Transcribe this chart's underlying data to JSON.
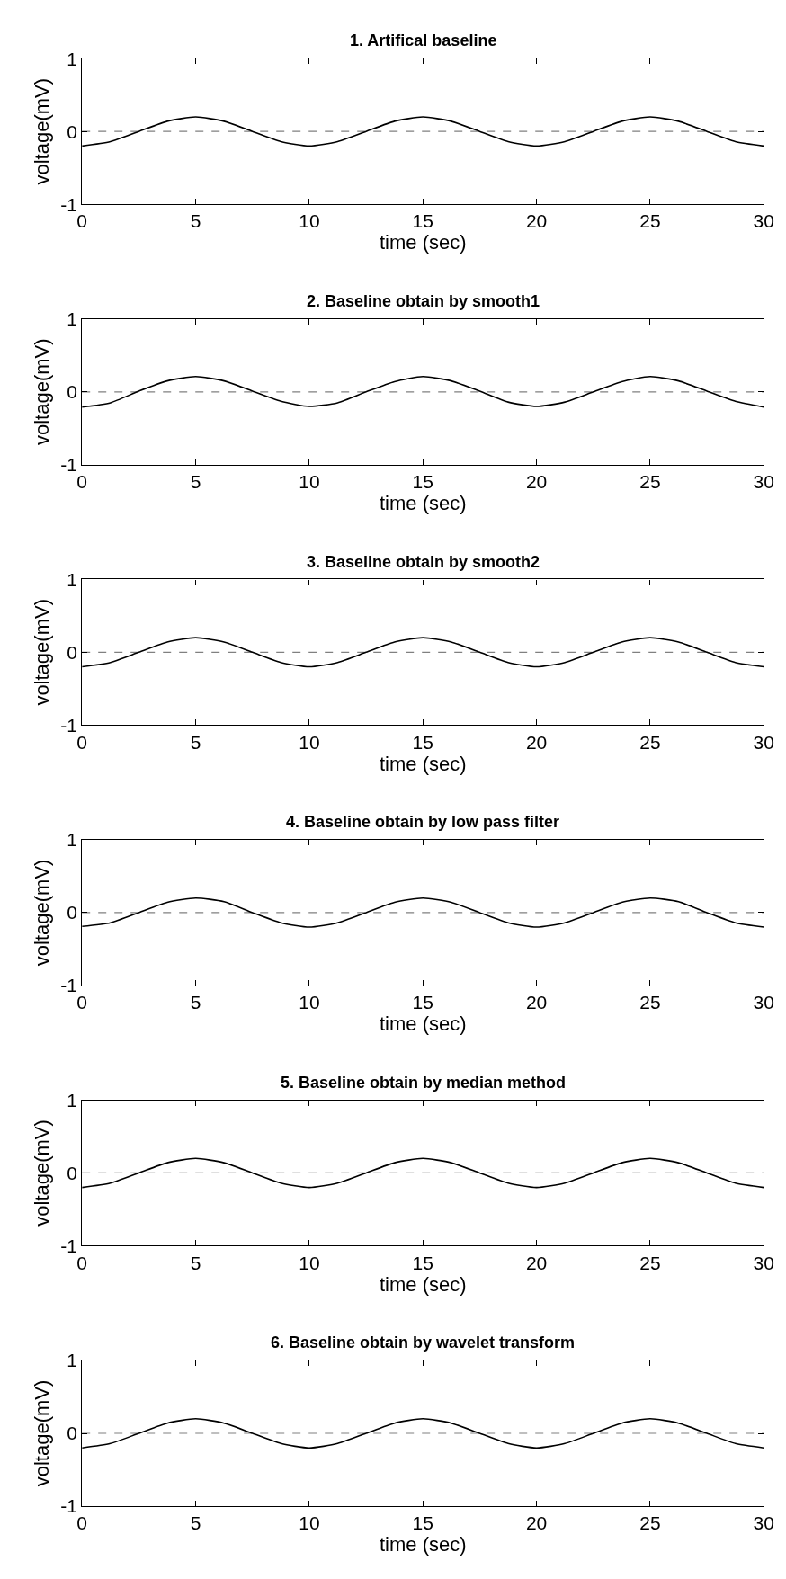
{
  "chart_data": [
    {
      "type": "line",
      "title": "1. Artifical baseline",
      "xlabel": "time (sec)",
      "ylabel": "voltage(mV)",
      "xlim": [
        0,
        30
      ],
      "xticks": [
        0,
        5,
        10,
        15,
        20,
        25,
        30
      ],
      "ylim": [
        -1,
        1
      ],
      "yticks": [
        -1,
        0,
        1
      ],
      "ref_lines": [
        {
          "axis": "y",
          "value": 0,
          "color": "#808080",
          "line_style": "dashed"
        }
      ],
      "x": [
        0,
        1.25,
        2.5,
        3.75,
        5,
        6.25,
        7.5,
        8.75,
        10,
        11.25,
        12.5,
        13.75,
        15,
        16.25,
        17.5,
        18.75,
        20,
        21.25,
        22.5,
        23.75,
        25,
        26.25,
        27.5,
        28.75,
        30
      ],
      "series": [
        {
          "color": "#000000",
          "values": [
            -0.2,
            -0.14,
            0,
            0.14,
            0.2,
            0.14,
            0,
            -0.14,
            -0.2,
            -0.14,
            0,
            0.14,
            0.2,
            0.14,
            0,
            -0.14,
            -0.2,
            -0.14,
            0,
            0.14,
            0.2,
            0.14,
            0,
            -0.14,
            -0.2
          ]
        }
      ]
    },
    {
      "type": "line",
      "title": "2. Baseline obtain by smooth1",
      "xlabel": "time (sec)",
      "ylabel": "voltage(mV)",
      "xlim": [
        0,
        30
      ],
      "xticks": [
        0,
        5,
        10,
        15,
        20,
        25,
        30
      ],
      "ylim": [
        -1,
        1
      ],
      "yticks": [
        -1,
        0,
        1
      ],
      "ref_lines": [
        {
          "axis": "y",
          "value": 0,
          "color": "#808080",
          "line_style": "dashed"
        }
      ],
      "x": [
        0,
        1.25,
        2.5,
        3.75,
        5,
        6.25,
        7.5,
        8.75,
        10,
        11.25,
        12.5,
        13.75,
        15,
        16.25,
        17.5,
        18.75,
        20,
        21.25,
        22.5,
        23.75,
        25,
        26.25,
        27.5,
        28.75,
        30
      ],
      "series": [
        {
          "color": "#000000",
          "values": [
            -0.21,
            -0.15,
            0.01,
            0.15,
            0.21,
            0.15,
            0.01,
            -0.13,
            -0.2,
            -0.15,
            0,
            0.14,
            0.21,
            0.15,
            0.01,
            -0.14,
            -0.2,
            -0.14,
            0,
            0.14,
            0.21,
            0.15,
            0.01,
            -0.13,
            -0.21
          ]
        }
      ]
    },
    {
      "type": "line",
      "title": "3. Baseline obtain by smooth2",
      "xlabel": "time (sec)",
      "ylabel": "voltage(mV)",
      "xlim": [
        0,
        30
      ],
      "xticks": [
        0,
        5,
        10,
        15,
        20,
        25,
        30
      ],
      "ylim": [
        -1,
        1
      ],
      "yticks": [
        -1,
        0,
        1
      ],
      "ref_lines": [
        {
          "axis": "y",
          "value": 0,
          "color": "#808080",
          "line_style": "dashed"
        }
      ],
      "x": [
        0,
        1.25,
        2.5,
        3.75,
        5,
        6.25,
        7.5,
        8.75,
        10,
        11.25,
        12.5,
        13.75,
        15,
        16.25,
        17.5,
        18.75,
        20,
        21.25,
        22.5,
        23.75,
        25,
        26.25,
        27.5,
        28.75,
        30
      ],
      "series": [
        {
          "color": "#000000",
          "values": [
            -0.2,
            -0.14,
            0,
            0.14,
            0.2,
            0.14,
            0,
            -0.14,
            -0.2,
            -0.14,
            0,
            0.14,
            0.2,
            0.14,
            0,
            -0.14,
            -0.2,
            -0.14,
            0,
            0.14,
            0.2,
            0.14,
            0,
            -0.14,
            -0.2
          ]
        }
      ]
    },
    {
      "type": "line",
      "title": "4. Baseline obtain by low pass filter",
      "xlabel": "time (sec)",
      "ylabel": "voltage(mV)",
      "xlim": [
        0,
        30
      ],
      "xticks": [
        0,
        5,
        10,
        15,
        20,
        25,
        30
      ],
      "ylim": [
        -1,
        1
      ],
      "yticks": [
        -1,
        0,
        1
      ],
      "ref_lines": [
        {
          "axis": "y",
          "value": 0,
          "color": "#808080",
          "line_style": "dashed"
        }
      ],
      "x": [
        0,
        1.25,
        2.5,
        3.75,
        5,
        6.25,
        7.5,
        8.75,
        10,
        11.25,
        12.5,
        13.75,
        15,
        16.25,
        17.5,
        18.75,
        20,
        21.25,
        22.5,
        23.75,
        25,
        26.25,
        27.5,
        28.75,
        30
      ],
      "series": [
        {
          "color": "#000000",
          "values": [
            -0.19,
            -0.14,
            0,
            0.14,
            0.2,
            0.15,
            0,
            -0.14,
            -0.2,
            -0.14,
            0,
            0.14,
            0.2,
            0.14,
            0,
            -0.14,
            -0.2,
            -0.14,
            0,
            0.14,
            0.2,
            0.15,
            0,
            -0.14,
            -0.2
          ]
        }
      ]
    },
    {
      "type": "line",
      "title": "5. Baseline obtain by median method",
      "xlabel": "time (sec)",
      "ylabel": "voltage(mV)",
      "xlim": [
        0,
        30
      ],
      "xticks": [
        0,
        5,
        10,
        15,
        20,
        25,
        30
      ],
      "ylim": [
        -1,
        1
      ],
      "yticks": [
        -1,
        0,
        1
      ],
      "ref_lines": [
        {
          "axis": "y",
          "value": 0,
          "color": "#808080",
          "line_style": "dashed"
        }
      ],
      "x": [
        0,
        1.25,
        2.5,
        3.75,
        5,
        6.25,
        7.5,
        8.75,
        10,
        11.25,
        12.5,
        13.75,
        15,
        16.25,
        17.5,
        18.75,
        20,
        21.25,
        22.5,
        23.75,
        25,
        26.25,
        27.5,
        28.75,
        30
      ],
      "series": [
        {
          "color": "#000000",
          "values": [
            -0.2,
            -0.14,
            0,
            0.14,
            0.2,
            0.14,
            0,
            -0.14,
            -0.2,
            -0.14,
            0,
            0.14,
            0.2,
            0.14,
            0,
            -0.14,
            -0.2,
            -0.14,
            0,
            0.14,
            0.2,
            0.14,
            0,
            -0.14,
            -0.2
          ]
        }
      ]
    },
    {
      "type": "line",
      "title": "6. Baseline obtain by wavelet transform",
      "xlabel": "time (sec)",
      "ylabel": "voltage(mV)",
      "xlim": [
        0,
        30
      ],
      "xticks": [
        0,
        5,
        10,
        15,
        20,
        25,
        30
      ],
      "ylim": [
        -1,
        1
      ],
      "yticks": [
        -1,
        0,
        1
      ],
      "ref_lines": [
        {
          "axis": "y",
          "value": 0,
          "color": "#808080",
          "line_style": "dashed"
        }
      ],
      "x": [
        0,
        1.25,
        2.5,
        3.75,
        5,
        6.25,
        7.5,
        8.75,
        10,
        11.25,
        12.5,
        13.75,
        15,
        16.25,
        17.5,
        18.75,
        20,
        21.25,
        22.5,
        23.75,
        25,
        26.25,
        27.5,
        28.75,
        30
      ],
      "series": [
        {
          "color": "#000000",
          "values": [
            -0.2,
            -0.14,
            0,
            0.14,
            0.2,
            0.14,
            0,
            -0.14,
            -0.2,
            -0.14,
            0,
            0.14,
            0.2,
            0.14,
            0,
            -0.14,
            -0.2,
            -0.14,
            0,
            0.14,
            0.2,
            0.14,
            0,
            -0.14,
            -0.2
          ]
        }
      ]
    }
  ]
}
